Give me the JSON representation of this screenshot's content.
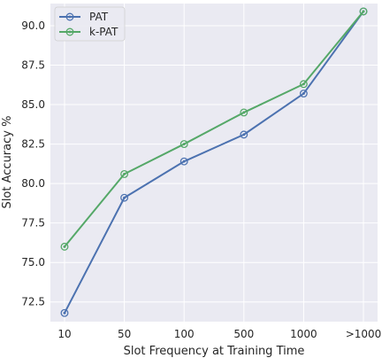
{
  "chart_data": {
    "type": "line",
    "categories": [
      "10",
      "50",
      "100",
      "500",
      "1000",
      ">1000"
    ],
    "series": [
      {
        "name": "PAT",
        "color": "#4c72b0",
        "values": [
          71.8,
          79.1,
          81.4,
          83.1,
          85.7,
          90.9
        ]
      },
      {
        "name": "k-PAT",
        "color": "#55a868",
        "values": [
          76.0,
          80.6,
          82.5,
          84.5,
          86.3,
          90.9
        ]
      }
    ],
    "xlabel": "Slot Frequency at Training Time",
    "ylabel": "Slot Accuracy %",
    "ylim": [
      71.25,
      91.4
    ],
    "yticks": [
      "72.5",
      "75.0",
      "77.5",
      "80.0",
      "82.5",
      "85.0",
      "87.5",
      "90.0"
    ],
    "grid": true,
    "background": "#eaeaf2",
    "legend_position": "top-left",
    "marker": "circle-ring"
  }
}
